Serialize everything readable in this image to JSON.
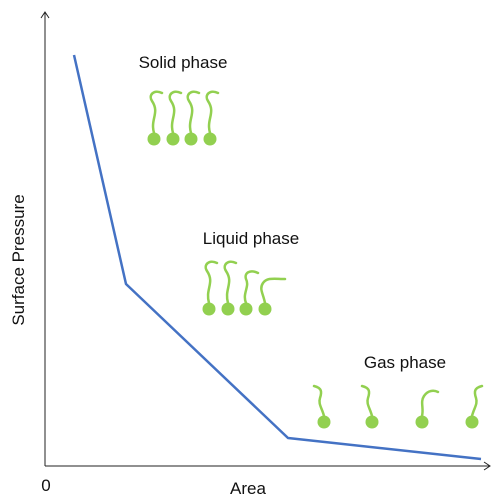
{
  "axes": {
    "y_label": "Surface Pressure",
    "x_label": "Area",
    "origin": "0"
  },
  "phases": [
    {
      "label": "Solid phase"
    },
    {
      "label": "Liquid phase"
    },
    {
      "label": "Gas phase"
    }
  ]
}
